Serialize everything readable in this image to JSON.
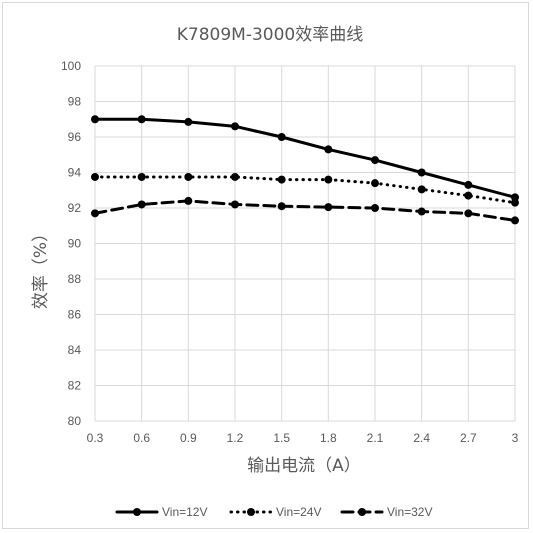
{
  "chart_data": {
    "type": "line",
    "title": "K7809M-3000效率曲线",
    "xlabel": "输出电流（A）",
    "ylabel": "效率（%）",
    "categories": [
      "0.3",
      "0.6",
      "0.9",
      "1.2",
      "1.5",
      "1.8",
      "2.1",
      "2.4",
      "2.7",
      "3"
    ],
    "ylim": [
      80,
      100
    ],
    "yticks": [
      "80",
      "82",
      "84",
      "86",
      "88",
      "90",
      "92",
      "94",
      "96",
      "98",
      "100"
    ],
    "grid": "vertical and horizontal",
    "legend_position": "bottom",
    "series": [
      {
        "name": "Vin=12V",
        "style": "solid",
        "color": "#000000",
        "values": [
          97.0,
          97.0,
          96.85,
          96.6,
          96.0,
          95.3,
          94.7,
          94.0,
          93.3,
          92.6
        ]
      },
      {
        "name": "Vin=24V",
        "style": "dotted",
        "color": "#000000",
        "values": [
          93.75,
          93.75,
          93.75,
          93.75,
          93.6,
          93.6,
          93.4,
          93.05,
          92.7,
          92.3
        ]
      },
      {
        "name": "Vin=32V",
        "style": "dashed",
        "color": "#000000",
        "values": [
          91.7,
          92.2,
          92.4,
          92.2,
          92.1,
          92.05,
          92.0,
          91.8,
          91.7,
          91.3
        ]
      }
    ]
  }
}
